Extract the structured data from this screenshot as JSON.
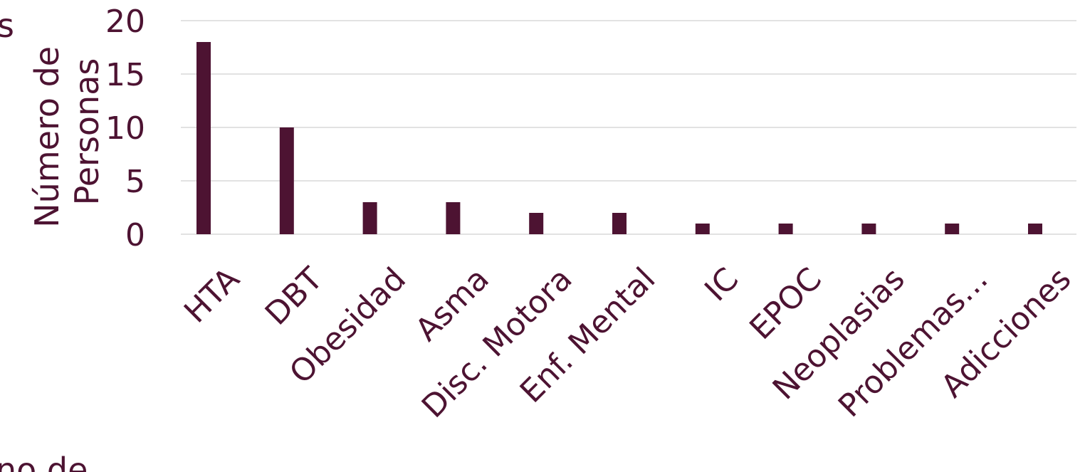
{
  "chart_data": {
    "type": "bar",
    "categories": [
      "HTA",
      "DBT",
      "Obesidad",
      "Asma",
      "Disc. Motora",
      "Enf. Mental",
      "IC",
      "EPOC",
      "Neoplasias",
      "Problemas…",
      "Adicciones"
    ],
    "values": [
      18,
      10,
      3,
      3,
      2,
      2,
      1,
      1,
      1,
      1,
      1
    ],
    "title": "",
    "xlabel": "",
    "ylabel": [
      "Número de",
      "Personas"
    ],
    "ylim": [
      0,
      20
    ],
    "yticks": [
      "0",
      "5",
      "10",
      "15",
      "20"
    ],
    "grid": true,
    "legend": "none",
    "color": "#4d1332"
  },
  "page": {
    "edge_text_left": "s",
    "edge_text_bottom": "no de"
  },
  "colors": {
    "bar": "#4d1332",
    "text": "#4d1332",
    "grid": "#d9d9d9"
  }
}
